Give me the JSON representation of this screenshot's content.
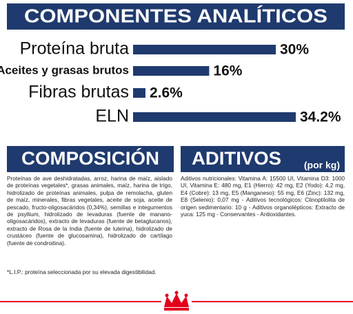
{
  "chart_data": {
    "type": "bar",
    "orientation": "horizontal",
    "title": "COMPONENTES ANALÍTICOS",
    "categories": [
      "Proteína bruta",
      "Aceites y grasas brutos",
      "Fibras brutas",
      "ELN"
    ],
    "values": [
      30,
      16,
      2.6,
      34.2
    ],
    "value_labels": [
      "30%",
      "16%",
      "2.6%",
      "34.2%"
    ],
    "color": "#1f3a6e"
  },
  "composition": {
    "title": "COMPOSICIÓN",
    "text": "Proteínas de ave deshidratadas, arroz, harina de maíz, aislado de proteínas vegetales*, grasas animales, maíz, harina de trigo, hidrolizado de proteínas animales, pulpa de remolacha, gluten de maíz, minerales, fibras vegetales, aceite de soja, aceite de pescado, fructo-oligosacáridos (0,34%), semillas e integumentos de psyllium, hidrolizado de levaduras (fuente de manano-oligosacáridos), extracto de levaduras (fuente de betaglucanos), extracto de Rosa de la India (fuente de luteína), hidrolizado de crustáceo (fuente de glucosamina), hidrolizado de cartílago (fuente de condroitina).",
    "note": "*L.I.P.: proteína seleccionada por su elevada digestibilidad."
  },
  "additives": {
    "title": "ADITIVOS",
    "subtitle": "(por kg)",
    "text": "Aditivos nutricionales: Vitamina A: 15500 UI, Vitamina D3: 1000 UI, Vitamina E: 480 mg, E1 (Hierro): 42 mg, E2 (Yodo): 4,2 mg, E4 (Cobre): 13 mg, E5 (Manganeso): 55 mg, E6 (Zinc): 132 mg, E8 (Selenio): 0,07 mg - Aditivos tecnológicos: Clinoptilolita de origen sedimentario: 10 g - Aditivos organolépticos: Extracto de yuca: 125 mg - Conservantes - Antioxidantes."
  }
}
